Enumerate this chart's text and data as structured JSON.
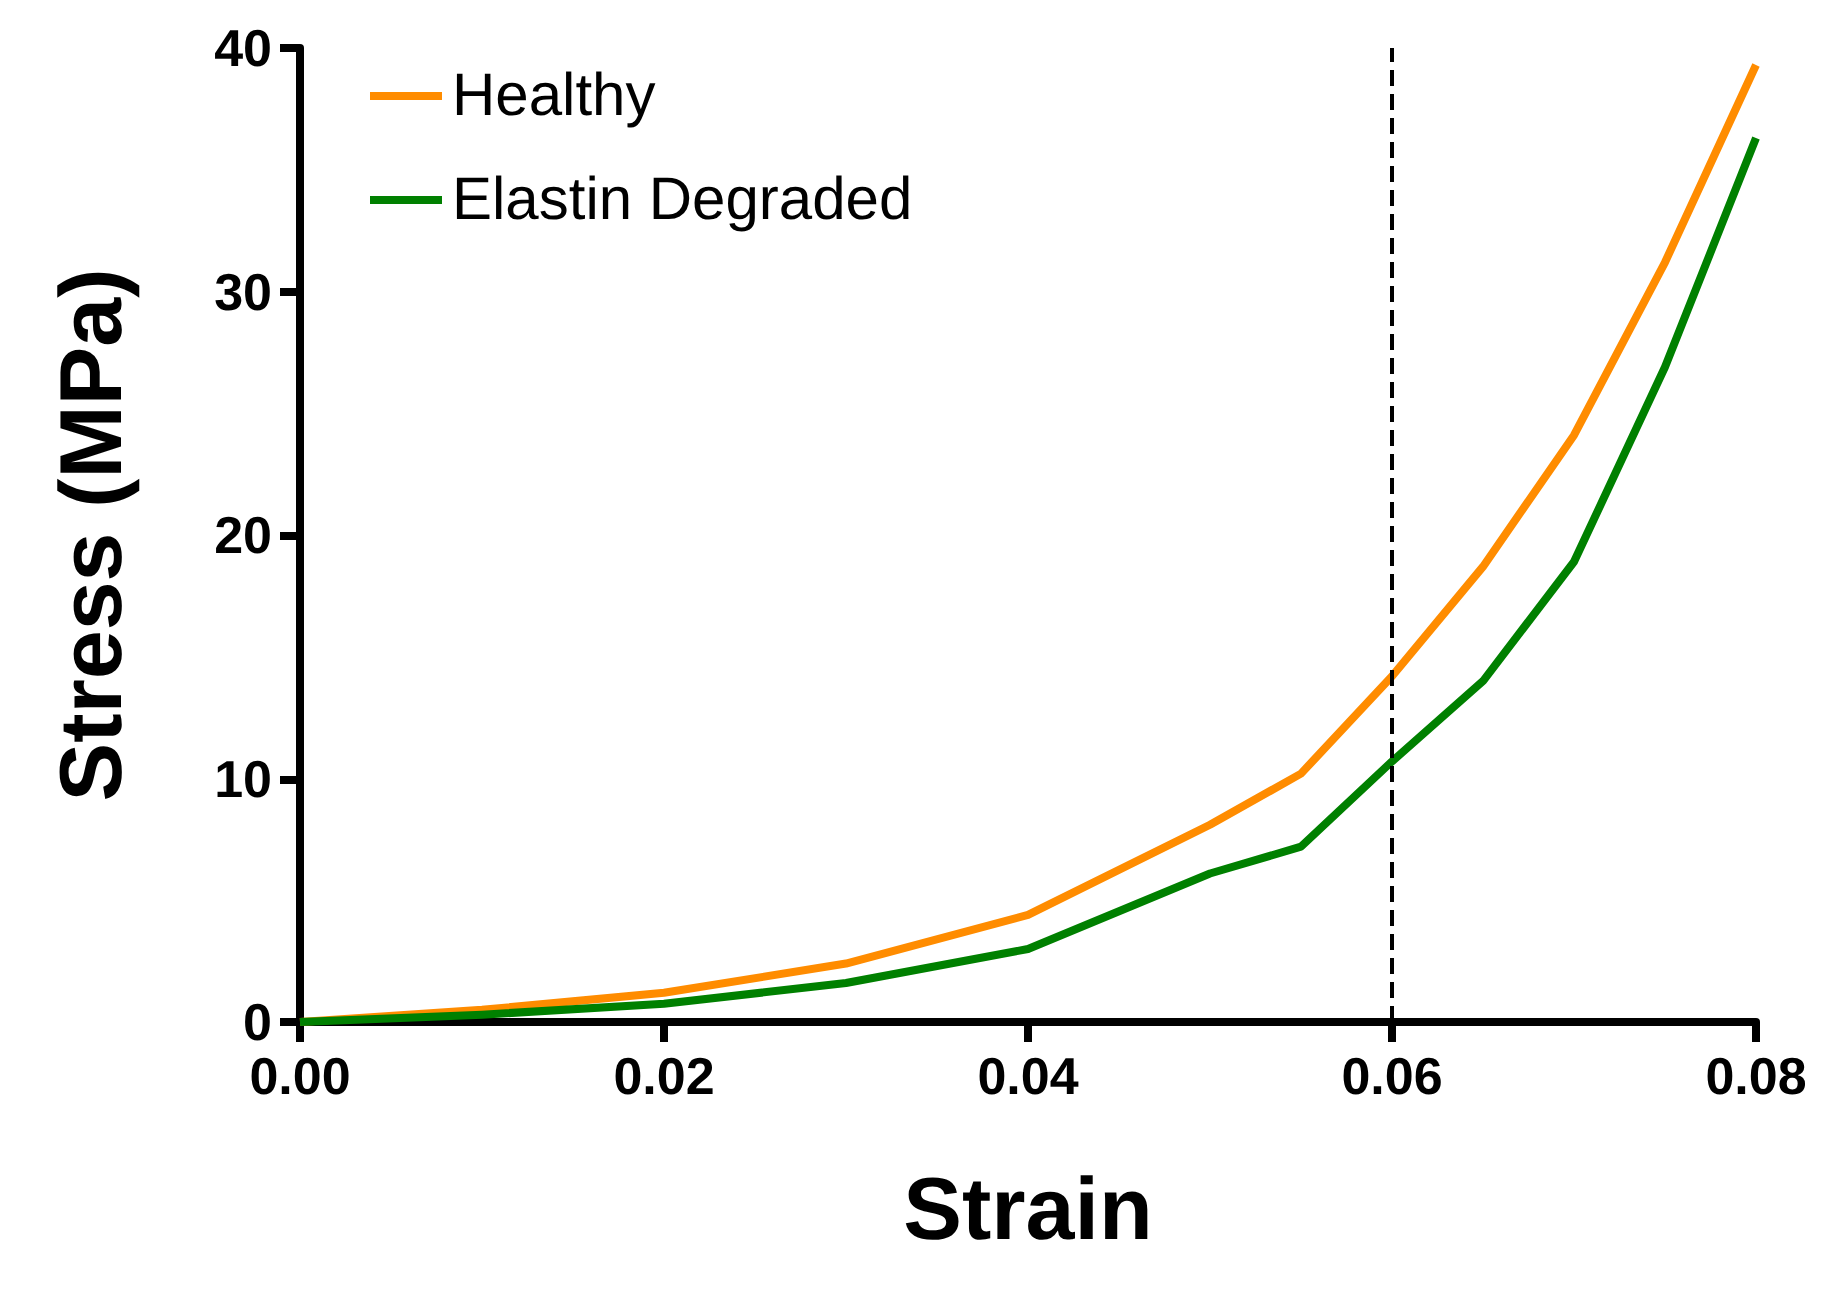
{
  "chart_data": {
    "type": "line",
    "xlabel": "Strain",
    "ylabel": "Stress (MPa)",
    "x": [
      0,
      0.01,
      0.02,
      0.03,
      0.04,
      0.05,
      0.055,
      0.06,
      0.065,
      0.07,
      0.075,
      0.08
    ],
    "series": [
      {
        "name": "Healthy",
        "color": "#ff8c00",
        "values": [
          0,
          0.5,
          1.2,
          2.4,
          4.4,
          8.1,
          10.2,
          14.2,
          18.7,
          24.1,
          31.2,
          39.3
        ]
      },
      {
        "name": "Elastin Degraded",
        "color": "#008000",
        "values": [
          0,
          0.3,
          0.75,
          1.6,
          3.0,
          6.1,
          7.2,
          10.7,
          14.0,
          18.9,
          26.9,
          36.3
        ]
      }
    ],
    "xlim": [
      0,
      0.08
    ],
    "xticks": [
      {
        "value": 0,
        "label": "0.00"
      },
      0.02,
      0.04,
      0.06,
      0.08
    ],
    "ylim": [
      0,
      40
    ],
    "yticks": [
      0,
      10,
      20,
      30,
      40
    ],
    "ref_lines": [
      {
        "axis": "x",
        "value": 0.06,
        "color": "#000000",
        "line_style": "dashed"
      }
    ],
    "grid": false,
    "legend": "top left",
    "marker": "none",
    "line_style": "solid"
  }
}
